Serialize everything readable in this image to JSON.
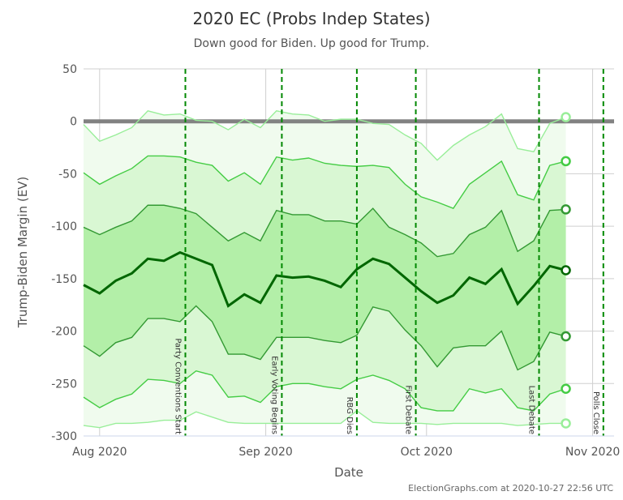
{
  "chart_data": {
    "type": "line",
    "title": "2020 EC (Probs Indep States)",
    "subtitle": "Down good for Biden. Up good for Trump.",
    "xlabel": "Date",
    "ylabel": "Trump-Biden Margin (EV)",
    "ylim": [
      -300,
      50
    ],
    "xlim": [
      "2020-07-29",
      "2020-11-05"
    ],
    "yticks": [
      50,
      0,
      -50,
      -100,
      -150,
      -200,
      -250,
      -300
    ],
    "xticks": [
      {
        "date": "2020-08-01",
        "label": "Aug 2020"
      },
      {
        "date": "2020-09-01",
        "label": "Sep 2020"
      },
      {
        "date": "2020-10-01",
        "label": "Oct 2020"
      },
      {
        "date": "2020-11-01",
        "label": "Nov 2020"
      }
    ],
    "grid": true,
    "reference_line": {
      "value": 0,
      "color": "#777777"
    },
    "events": [
      {
        "date": "2020-08-17",
        "label": "Party Conventions Start"
      },
      {
        "date": "2020-09-04",
        "label": "Early Voting Begins"
      },
      {
        "date": "2020-09-18",
        "label": "RBG Dies"
      },
      {
        "date": "2020-09-29",
        "label": "First Debate"
      },
      {
        "date": "2020-10-22",
        "label": "Last Debate"
      },
      {
        "date": "2020-11-03",
        "label": "Polls Close"
      }
    ],
    "x": [
      "2020-07-29",
      "2020-08-01",
      "2020-08-04",
      "2020-08-07",
      "2020-08-10",
      "2020-08-13",
      "2020-08-16",
      "2020-08-19",
      "2020-08-22",
      "2020-08-25",
      "2020-08-28",
      "2020-08-31",
      "2020-09-03",
      "2020-09-06",
      "2020-09-09",
      "2020-09-12",
      "2020-09-15",
      "2020-09-18",
      "2020-09-21",
      "2020-09-24",
      "2020-09-27",
      "2020-09-30",
      "2020-10-03",
      "2020-10-06",
      "2020-10-09",
      "2020-10-12",
      "2020-10-15",
      "2020-10-18",
      "2020-10-21",
      "2020-10-24",
      "2020-10-27"
    ],
    "series": [
      {
        "key": "upper3",
        "color": "#99ee99",
        "values": [
          -3,
          -19,
          -13,
          -6,
          10,
          6,
          7,
          1,
          0,
          -8,
          2,
          -6,
          10,
          7,
          6,
          0,
          2,
          2,
          -2,
          -3,
          -13,
          -21,
          -37,
          -23,
          -13,
          -5,
          7,
          -26,
          -29,
          -2,
          4
        ]
      },
      {
        "key": "upper2",
        "color": "#44cc44",
        "values": [
          -49,
          -60,
          -52,
          -45,
          -33,
          -33,
          -34,
          -39,
          -42,
          -57,
          -49,
          -60,
          -34,
          -37,
          -35,
          -40,
          -42,
          -43,
          -42,
          -44,
          -60,
          -72,
          -77,
          -83,
          -60,
          -49,
          -38,
          -70,
          -75,
          -42,
          -38
        ]
      },
      {
        "key": "upper1",
        "color": "#339933",
        "values": [
          -101,
          -108,
          -101,
          -95,
          -80,
          -80,
          -83,
          -88,
          -101,
          -114,
          -106,
          -114,
          -85,
          -89,
          -89,
          -95,
          -95,
          -98,
          -83,
          -101,
          -108,
          -116,
          -129,
          -126,
          -108,
          -101,
          -85,
          -124,
          -114,
          -85,
          -84
        ]
      },
      {
        "key": "median",
        "color": "#006600",
        "values": [
          -156,
          -164,
          -152,
          -145,
          -131,
          -133,
          -125,
          -131,
          -137,
          -176,
          -165,
          -173,
          -147,
          -149,
          -148,
          -152,
          -158,
          -141,
          -131,
          -136,
          -149,
          -162,
          -173,
          -166,
          -149,
          -155,
          -141,
          -174,
          -157,
          -138,
          -142
        ]
      },
      {
        "key": "lower1",
        "color": "#339933",
        "values": [
          -214,
          -224,
          -211,
          -206,
          -188,
          -188,
          -191,
          -176,
          -191,
          -222,
          -222,
          -227,
          -206,
          -206,
          -206,
          -209,
          -211,
          -204,
          -177,
          -181,
          -199,
          -214,
          -234,
          -216,
          -214,
          -214,
          -200,
          -237,
          -229,
          -201,
          -205
        ]
      },
      {
        "key": "lower2",
        "color": "#44cc44",
        "values": [
          -263,
          -273,
          -265,
          -260,
          -246,
          -247,
          -250,
          -238,
          -242,
          -263,
          -262,
          -268,
          -253,
          -250,
          -250,
          -253,
          -255,
          -246,
          -242,
          -247,
          -255,
          -273,
          -276,
          -276,
          -255,
          -259,
          -255,
          -273,
          -276,
          -260,
          -255
        ]
      },
      {
        "key": "lower3",
        "color": "#99ee99",
        "values": [
          -290,
          -292,
          -288,
          -288,
          -287,
          -285,
          -285,
          -277,
          -282,
          -287,
          -288,
          -288,
          -288,
          -288,
          -288,
          -288,
          -288,
          -276,
          -287,
          -288,
          -288,
          -288,
          -289,
          -288,
          -288,
          -288,
          -288,
          -290,
          -289,
          -288,
          -288
        ]
      }
    ],
    "band_colors": {
      "band3": "#f0fbee",
      "band2": "#d9f7d3",
      "band1": "#b3efa8"
    },
    "event_line_color": "#008800"
  },
  "credit": "ElectionGraphs.com at 2020-10-27 22:56 UTC"
}
